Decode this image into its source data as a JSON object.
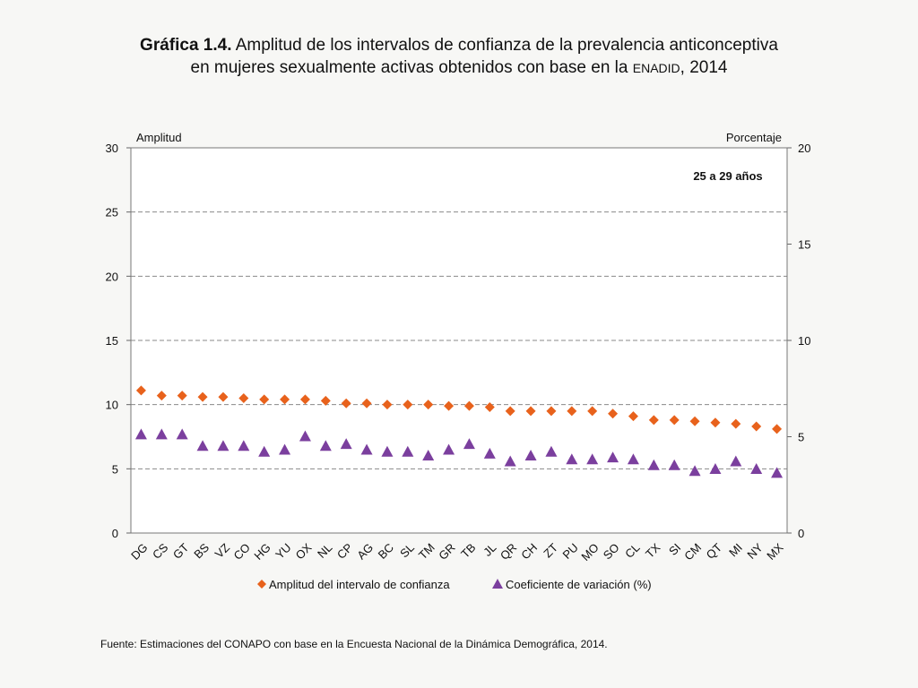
{
  "title": {
    "bold": "Gráfica 1.4.",
    "line1_rest": " Amplitud de los intervalos de confianza de la prevalencia anticonceptiva",
    "line2_pre": "en mujeres sexualmente activas obtenidos con base en la ",
    "line2_sc": "ENADID",
    "line2_post": ", 2014"
  },
  "footer": "Fuente: Estimaciones del CONAPO con base en la Encuesta Nacional de la Dinámica Demográfica, 2014.",
  "colors": {
    "amplitud": "#e8621c",
    "coeficiente": "#7b3f9e",
    "grid": "#8a8a8a"
  },
  "chart_data": {
    "type": "scatter",
    "subtitle": "25 a 29 años",
    "ylabel_left": "Amplitud",
    "ylabel_right": "Porcentaje",
    "ylim_left": [
      0,
      30
    ],
    "ylim_right": [
      0,
      20
    ],
    "yticks_left": [
      0,
      5,
      10,
      15,
      20,
      25,
      30
    ],
    "yticks_right": [
      0,
      5,
      10,
      15,
      20
    ],
    "gridlines": "dashed",
    "legend_position": "bottom",
    "categories": [
      "DG",
      "CS",
      "GT",
      "BS",
      "VZ",
      "CO",
      "HG",
      "YU",
      "OX",
      "NL",
      "CP",
      "AG",
      "BC",
      "SL",
      "TM",
      "GR",
      "TB",
      "JL",
      "QR",
      "CH",
      "ZT",
      "PU",
      "MO",
      "SO",
      "CL",
      "TX",
      "SI",
      "CM",
      "QT",
      "MI",
      "NY",
      "MX"
    ],
    "series": [
      {
        "name": "Amplitud del intervalo de confianza",
        "axis": "left",
        "marker": "diamond",
        "values": [
          11.1,
          10.7,
          10.7,
          10.6,
          10.6,
          10.5,
          10.4,
          10.4,
          10.4,
          10.3,
          10.1,
          10.1,
          10.0,
          10.0,
          10.0,
          9.9,
          9.9,
          9.8,
          9.5,
          9.5,
          9.5,
          9.5,
          9.5,
          9.3,
          9.1,
          8.8,
          8.8,
          8.7,
          8.6,
          8.5,
          8.3,
          8.1
        ]
      },
      {
        "name": "Coeficiente de variación (%)",
        "axis": "right",
        "marker": "triangle",
        "values": [
          5.1,
          5.1,
          5.1,
          4.5,
          4.5,
          4.5,
          4.2,
          4.3,
          5.0,
          4.5,
          4.6,
          4.3,
          4.2,
          4.2,
          4.0,
          4.3,
          4.6,
          4.1,
          3.7,
          4.0,
          4.2,
          3.8,
          3.8,
          3.9,
          3.8,
          3.5,
          3.5,
          3.2,
          3.3,
          3.7,
          3.3,
          3.1
        ]
      }
    ]
  }
}
